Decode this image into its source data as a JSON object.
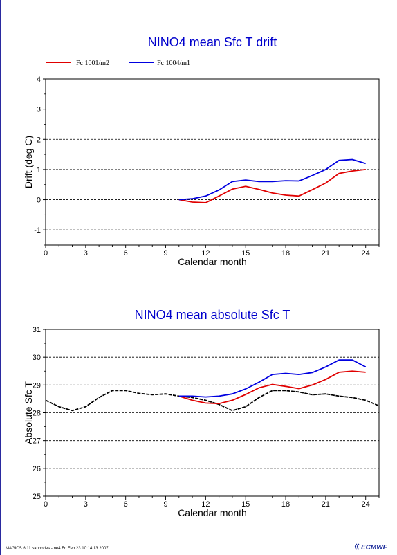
{
  "chart_data": [
    {
      "type": "line",
      "title": "NINO4 mean Sfc T drift",
      "xlabel": "Calendar month",
      "ylabel": "Drift (deg C)",
      "xlim": [
        0,
        25
      ],
      "ylim": [
        -1.5,
        4
      ],
      "xticks": [
        0,
        3,
        6,
        9,
        12,
        15,
        18,
        21,
        24
      ],
      "yticks": [
        -1,
        0,
        1,
        2,
        3,
        4
      ],
      "grid": "horizontal dashed",
      "legend": "top-left",
      "series": [
        {
          "name": "Fc 1001/m2",
          "color": "#e00000",
          "x": [
            10,
            11,
            12,
            13,
            14,
            15,
            16,
            17,
            18,
            19,
            20,
            21,
            22,
            23,
            24
          ],
          "y": [
            0.0,
            -0.08,
            -0.1,
            0.12,
            0.35,
            0.44,
            0.34,
            0.22,
            0.15,
            0.12,
            0.33,
            0.55,
            0.87,
            0.95,
            1.0
          ]
        },
        {
          "name": "Fc 1004/m1",
          "color": "#0000e0",
          "x": [
            10,
            11,
            12,
            13,
            14,
            15,
            16,
            17,
            18,
            19,
            20,
            21,
            22,
            23,
            24
          ],
          "y": [
            0.0,
            0.03,
            0.12,
            0.32,
            0.6,
            0.65,
            0.6,
            0.6,
            0.63,
            0.62,
            0.8,
            1.0,
            1.3,
            1.33,
            1.2
          ]
        }
      ]
    },
    {
      "type": "line",
      "title": "NINO4 mean absolute Sfc T",
      "xlabel": "Calendar month",
      "ylabel": "Absolute Sfc T",
      "xlim": [
        0,
        25
      ],
      "ylim": [
        25,
        31
      ],
      "xticks": [
        0,
        3,
        6,
        9,
        12,
        15,
        18,
        21,
        24
      ],
      "yticks": [
        25,
        26,
        27,
        28,
        29,
        30,
        31
      ],
      "grid": "horizontal dashed",
      "series": [
        {
          "color": "#000000",
          "x": [
            0,
            1,
            2,
            3,
            4,
            5,
            6,
            7,
            8,
            9,
            10,
            11,
            12,
            13,
            14,
            15,
            16,
            17,
            18,
            19,
            20,
            21,
            22,
            23,
            24,
            25
          ],
          "y": [
            28.45,
            28.22,
            28.08,
            28.22,
            28.55,
            28.8,
            28.8,
            28.7,
            28.65,
            28.68,
            28.6,
            28.55,
            28.45,
            28.3,
            28.08,
            28.22,
            28.55,
            28.8,
            28.8,
            28.75,
            28.65,
            28.68,
            28.6,
            28.55,
            28.45,
            28.25
          ]
        },
        {
          "name": "Fc 1001/m2",
          "color": "#e00000",
          "x": [
            10,
            11,
            12,
            13,
            14,
            15,
            16,
            17,
            18,
            19,
            20,
            21,
            22,
            23,
            24
          ],
          "y": [
            28.6,
            28.45,
            28.35,
            28.33,
            28.45,
            28.66,
            28.9,
            29.02,
            28.95,
            28.87,
            29.0,
            29.2,
            29.46,
            29.5,
            29.46
          ]
        },
        {
          "name": "Fc 1004/m1",
          "color": "#0000e0",
          "x": [
            10,
            11,
            12,
            13,
            14,
            15,
            16,
            17,
            18,
            19,
            20,
            21,
            22,
            23,
            24
          ],
          "y": [
            28.6,
            28.6,
            28.57,
            28.6,
            28.68,
            28.86,
            29.1,
            29.38,
            29.42,
            29.38,
            29.45,
            29.65,
            29.9,
            29.9,
            29.65
          ]
        }
      ]
    }
  ],
  "footer": {
    "text": "MAGICS 6.11 saphodes - ne4 Fri Feb 23 10:14:13 2007",
    "logo": "ECMWF"
  }
}
